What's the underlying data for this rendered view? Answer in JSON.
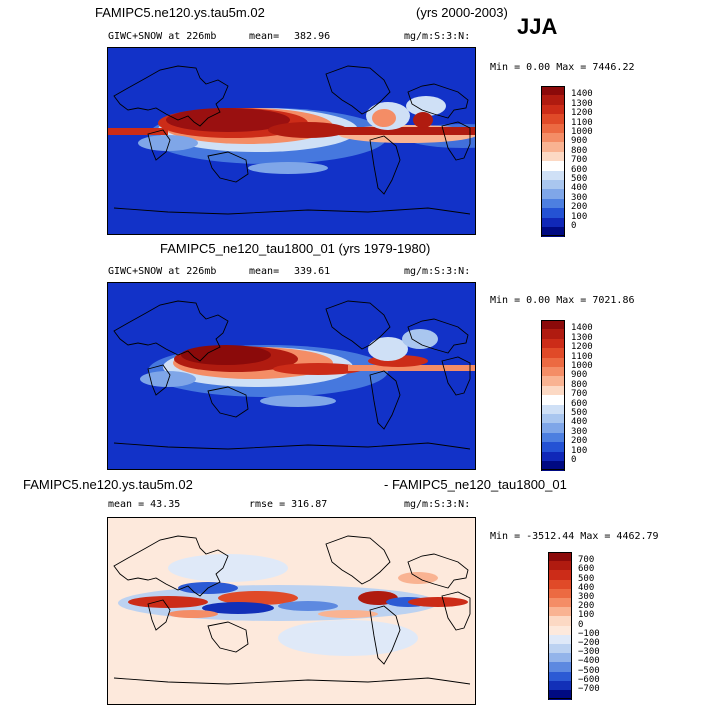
{
  "season": "JJA",
  "panels": [
    {
      "title": "FAMIPC5.ne120.ys.tau5m.02",
      "years": "(yrs 2000-2003)",
      "variable": "GIWC+SNOW at 226mb",
      "mean_label": "mean=",
      "mean_value": "382.96",
      "units": "mg/m:S:3:N:",
      "minmax": "Min =   0.00 Max = 7446.22"
    },
    {
      "title": "FAMIPC5_ne120_tau1800_01 (yrs 1979-1980)",
      "variable": "GIWC+SNOW at 226mb",
      "mean_label": "mean=",
      "mean_value": "339.61",
      "units": "mg/m:S:3:N:",
      "minmax": "Min =   0.00 Max = 7021.86"
    },
    {
      "title_left": "FAMIPC5.ne120.ys.tau5m.02",
      "title_right": "- FAMIPC5_ne120_tau1800_01",
      "mean_text": "mean =   43.35",
      "rmse_text": "rmse = 316.87",
      "units": "mg/m:S:3:N:",
      "minmax": "Min = -3512.44 Max = 4462.79"
    }
  ],
  "chart_data": [
    {
      "type": "heatmap",
      "title": "FAMIPC5.ne120.ys.tau5m.02 (yrs 2000-2003)",
      "variable": "GIWC+SNOW at 226mb",
      "mean": 382.96,
      "min": 0.0,
      "max": 7446.22,
      "units": "mg/m:S:3:N:",
      "colorbar_levels": [
        "1400",
        "1300",
        "1200",
        "1100",
        "1000",
        "900",
        "800",
        "700",
        "600",
        "500",
        "400",
        "300",
        "200",
        "100",
        "0"
      ],
      "colorbar_colors": [
        "#8b0a0a",
        "#b01b10",
        "#cc2c18",
        "#e04a28",
        "#ec6a42",
        "#f48d66",
        "#f9b392",
        "#fcd9c4",
        "#ffffff",
        "#cfe0f6",
        "#a9c6ef",
        "#7fa6e8",
        "#4d7fe0",
        "#2452d4",
        "#1028b8",
        "#000a82"
      ]
    },
    {
      "type": "heatmap",
      "title": "FAMIPC5_ne120_tau1800_01 (yrs 1979-1980)",
      "variable": "GIWC+SNOW at 226mb",
      "mean": 339.61,
      "min": 0.0,
      "max": 7021.86,
      "units": "mg/m:S:3:N:",
      "colorbar_levels": [
        "1400",
        "1300",
        "1200",
        "1100",
        "1000",
        "900",
        "800",
        "700",
        "600",
        "500",
        "400",
        "300",
        "200",
        "100",
        "0"
      ],
      "colorbar_colors": [
        "#8b0a0a",
        "#b01b10",
        "#cc2c18",
        "#e04a28",
        "#ec6a42",
        "#f48d66",
        "#f9b392",
        "#fcd9c4",
        "#ffffff",
        "#cfe0f6",
        "#a9c6ef",
        "#7fa6e8",
        "#4d7fe0",
        "#2452d4",
        "#1028b8",
        "#000a82"
      ]
    },
    {
      "type": "heatmap",
      "title": "FAMIPC5.ne120.ys.tau5m.02 - FAMIPC5_ne120_tau1800_01",
      "mean": 43.35,
      "rmse": 316.87,
      "min": -3512.44,
      "max": 4462.79,
      "units": "mg/m:S:3:N:",
      "colorbar_levels": [
        "700",
        "600",
        "500",
        "400",
        "300",
        "200",
        "100",
        "0",
        "−100",
        "−200",
        "−300",
        "−400",
        "−500",
        "−600",
        "−700"
      ],
      "colorbar_colors": [
        "#8b0a0a",
        "#b01b10",
        "#cc2c18",
        "#e04a28",
        "#ec6a42",
        "#f48d66",
        "#f9b392",
        "#fcd9c4",
        "#fde9dc",
        "#dfe9f8",
        "#bcd2f1",
        "#93b4ea",
        "#5d89e0",
        "#2c5ad4",
        "#1230b8",
        "#000a82"
      ]
    }
  ]
}
